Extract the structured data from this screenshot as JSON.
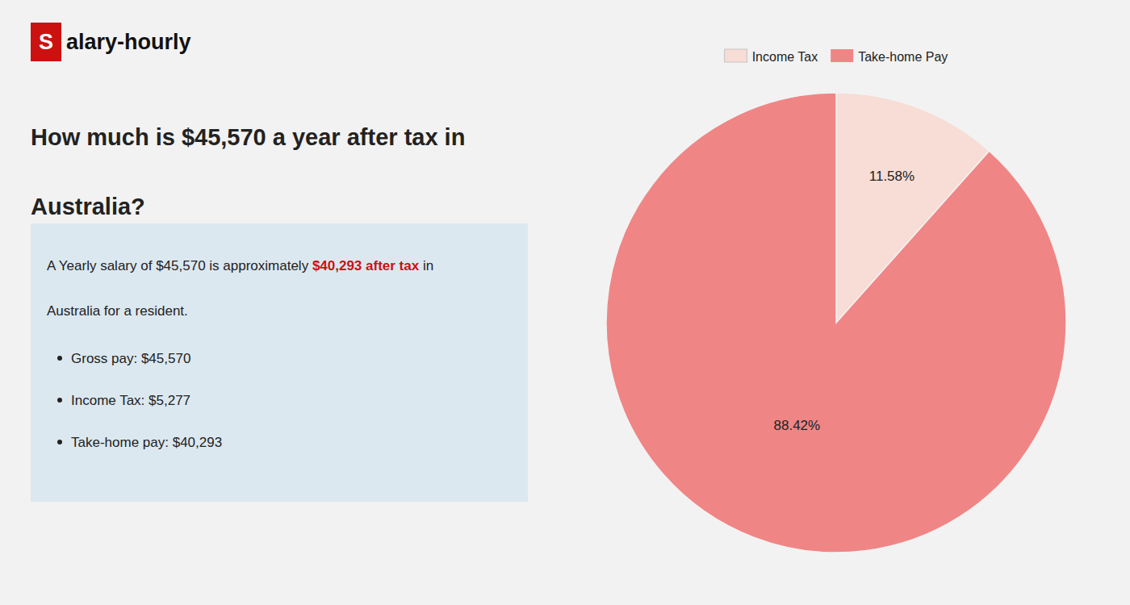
{
  "chart_data": {
    "type": "pie",
    "title": [
      "How much is $45,570 a year after tax in",
      "Australia?"
    ],
    "annotations": [
      {
        "text": "S",
        "color": "#cc1111"
      },
      {
        "text": "alary-hourly"
      },
      {
        "text": "A Yearly salary of $45,570 is approximately "
      },
      {
        "text": "$40,293 after tax",
        "color": "#cc1111"
      },
      {
        "text": " in"
      },
      {
        "text": "Australia for a resident."
      },
      {
        "text": "Gross pay: $45,570"
      },
      {
        "text": "Income Tax: $5,277"
      },
      {
        "text": "Take-home pay: $40,293"
      }
    ],
    "categories": [
      "Income Tax",
      "Take-home Pay"
    ],
    "values": [
      11.58,
      88.42
    ],
    "value_labels": [
      "11.58%",
      "88.42%"
    ],
    "colors": [
      "#f7ddd5",
      "#f08585"
    ],
    "data_labels": true,
    "legend": "top"
  }
}
